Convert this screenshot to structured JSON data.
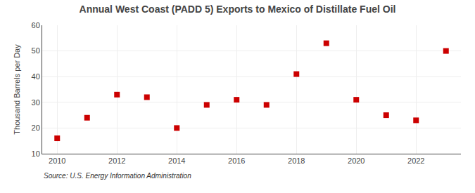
{
  "chart_data": {
    "type": "scatter",
    "title": "Annual West Coast (PADD 5) Exports to Mexico of Distillate Fuel Oil",
    "ylabel": "Thousand Barrels per Day",
    "annotations": [
      "Source: U.S. Energy Information Administration"
    ],
    "x": [
      2010,
      2011,
      2012,
      2013,
      2014,
      2015,
      2016,
      2017,
      2018,
      2019,
      2020,
      2021,
      2022,
      2023
    ],
    "values": [
      16,
      24,
      33,
      32,
      20,
      29,
      31,
      29,
      41,
      53,
      31,
      25,
      23,
      50
    ],
    "xlim": [
      2009.5,
      2023.5
    ],
    "xticks": [
      2010,
      2012,
      2014,
      2016,
      2018,
      2020,
      2022
    ],
    "ylim": [
      10,
      60
    ],
    "yticks": [
      10,
      20,
      30,
      40,
      50,
      60
    ],
    "color": "#cc0000",
    "marker": "square",
    "grid": true
  }
}
